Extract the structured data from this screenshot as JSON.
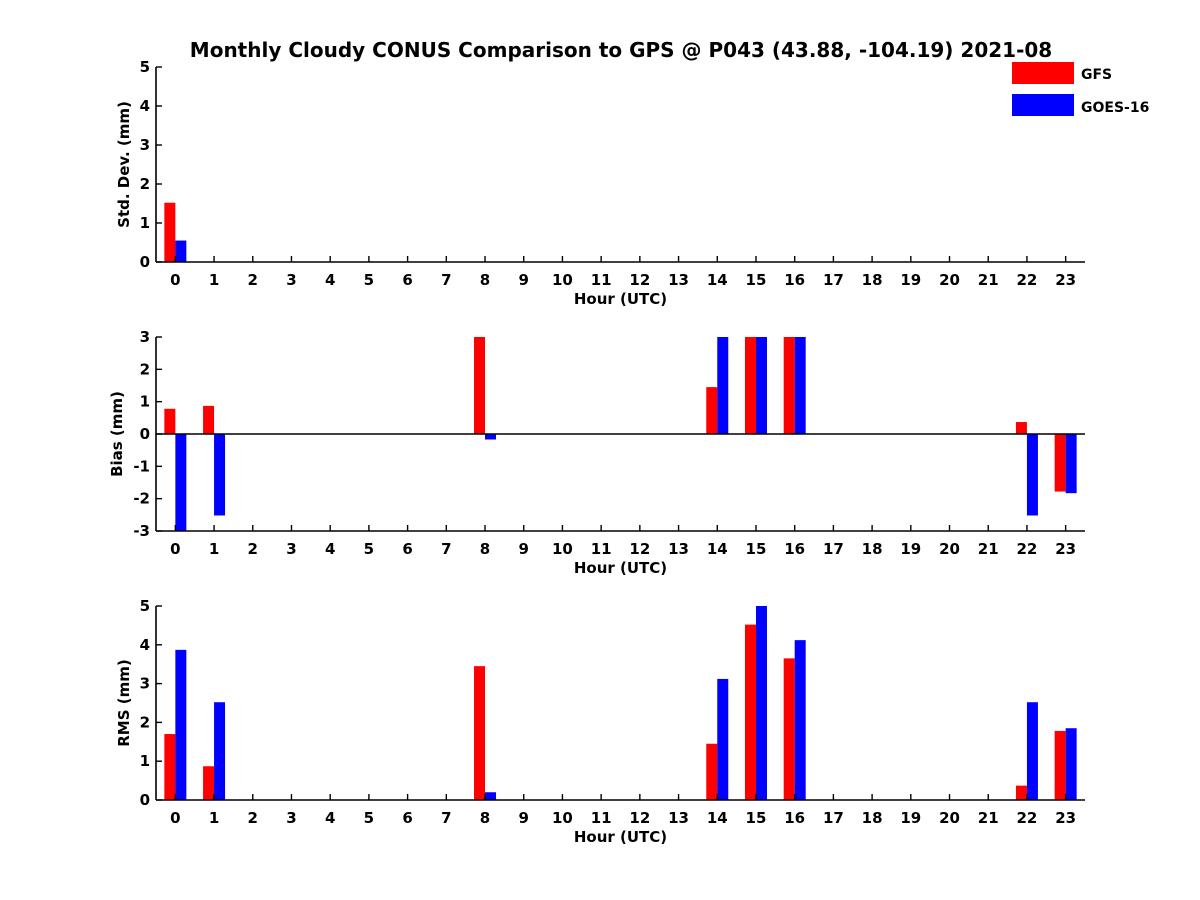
{
  "colors": {
    "GFS": "#ff0000",
    "GOES-16": "#0000ff",
    "axis": "#000000"
  },
  "chart_data": [
    {
      "type": "bar",
      "title": "Monthly Cloudy CONUS Comparison to GPS @ P043 (43.88, -104.19) 2021-08",
      "xlabel": "Hour (UTC)",
      "ylabel": "Std. Dev. (mm)",
      "ylim": [
        0,
        5
      ],
      "yticks": [
        0,
        1,
        2,
        3,
        4,
        5
      ],
      "categories": [
        "0",
        "1",
        "2",
        "3",
        "4",
        "5",
        "6",
        "7",
        "8",
        "9",
        "10",
        "11",
        "12",
        "13",
        "14",
        "15",
        "16",
        "17",
        "18",
        "19",
        "20",
        "21",
        "22",
        "23"
      ],
      "legend": {
        "placement": "top-right",
        "entries": [
          "GFS",
          "GOES-16"
        ]
      },
      "series": [
        {
          "name": "GFS",
          "values": [
            1.52,
            null,
            null,
            null,
            null,
            null,
            null,
            null,
            null,
            null,
            null,
            null,
            null,
            null,
            null,
            null,
            null,
            null,
            null,
            null,
            null,
            null,
            null,
            null
          ]
        },
        {
          "name": "GOES-16",
          "values": [
            0.55,
            null,
            null,
            null,
            null,
            null,
            null,
            null,
            null,
            null,
            null,
            null,
            null,
            null,
            null,
            null,
            null,
            null,
            null,
            null,
            null,
            null,
            null,
            null
          ]
        }
      ]
    },
    {
      "type": "bar",
      "xlabel": "Hour (UTC)",
      "ylabel": "Bias (mm)",
      "ylim": [
        -3,
        3
      ],
      "yticks": [
        -3,
        -2,
        -1,
        0,
        1,
        2,
        3
      ],
      "zero_line": true,
      "categories": [
        "0",
        "1",
        "2",
        "3",
        "4",
        "5",
        "6",
        "7",
        "8",
        "9",
        "10",
        "11",
        "12",
        "13",
        "14",
        "15",
        "16",
        "17",
        "18",
        "19",
        "20",
        "21",
        "22",
        "23"
      ],
      "series": [
        {
          "name": "GFS",
          "values": [
            0.78,
            0.87,
            null,
            null,
            null,
            null,
            null,
            null,
            3.0,
            null,
            null,
            null,
            null,
            null,
            1.45,
            3.0,
            3.0,
            null,
            null,
            null,
            null,
            null,
            0.37,
            -1.78
          ]
        },
        {
          "name": "GOES-16",
          "values": [
            -3.0,
            -2.52,
            null,
            null,
            null,
            null,
            null,
            null,
            -0.17,
            null,
            null,
            null,
            null,
            null,
            3.0,
            3.0,
            3.0,
            null,
            null,
            null,
            null,
            null,
            -2.52,
            -1.83
          ]
        }
      ]
    },
    {
      "type": "bar",
      "xlabel": "Hour (UTC)",
      "ylabel": "RMS (mm)",
      "ylim": [
        0,
        5
      ],
      "yticks": [
        0,
        1,
        2,
        3,
        4,
        5
      ],
      "categories": [
        "0",
        "1",
        "2",
        "3",
        "4",
        "5",
        "6",
        "7",
        "8",
        "9",
        "10",
        "11",
        "12",
        "13",
        "14",
        "15",
        "16",
        "17",
        "18",
        "19",
        "20",
        "21",
        "22",
        "23"
      ],
      "series": [
        {
          "name": "GFS",
          "values": [
            1.7,
            0.87,
            null,
            null,
            null,
            null,
            null,
            null,
            3.45,
            null,
            null,
            null,
            null,
            null,
            1.45,
            4.52,
            3.65,
            null,
            null,
            null,
            null,
            null,
            0.37,
            1.78
          ]
        },
        {
          "name": "GOES-16",
          "values": [
            3.87,
            2.52,
            null,
            null,
            null,
            null,
            null,
            null,
            0.2,
            null,
            null,
            null,
            null,
            null,
            3.12,
            5.0,
            4.12,
            null,
            null,
            null,
            null,
            null,
            2.52,
            1.85
          ]
        }
      ]
    }
  ]
}
